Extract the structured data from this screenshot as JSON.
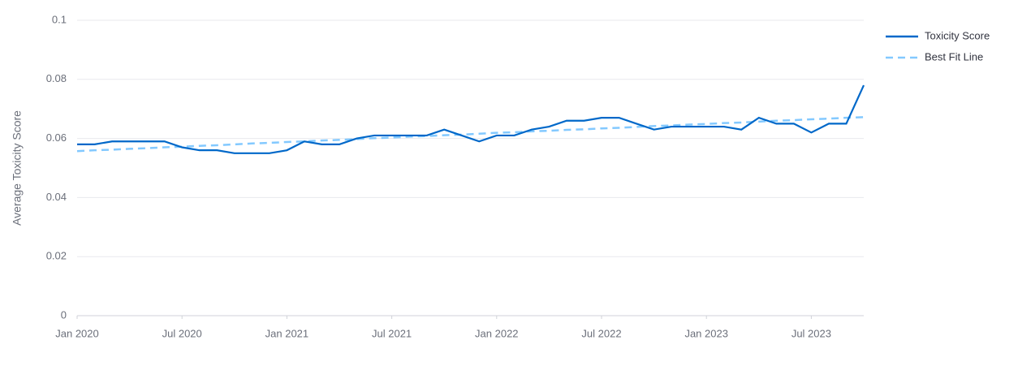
{
  "chart_data": {
    "type": "line",
    "y_label": "Average Toxicity Score",
    "x": [
      "2020-01",
      "2020-02",
      "2020-03",
      "2020-04",
      "2020-05",
      "2020-06",
      "2020-07",
      "2020-08",
      "2020-09",
      "2020-10",
      "2020-11",
      "2020-12",
      "2021-01",
      "2021-02",
      "2021-03",
      "2021-04",
      "2021-05",
      "2021-06",
      "2021-07",
      "2021-08",
      "2021-09",
      "2021-10",
      "2021-11",
      "2021-12",
      "2022-01",
      "2022-02",
      "2022-03",
      "2022-04",
      "2022-05",
      "2022-06",
      "2022-07",
      "2022-08",
      "2022-09",
      "2022-10",
      "2022-11",
      "2022-12",
      "2023-01",
      "2023-02",
      "2023-03",
      "2023-04",
      "2023-05",
      "2023-06",
      "2023-07",
      "2023-08",
      "2023-09",
      "2023-10"
    ],
    "series": [
      {
        "name": "Toxicity Score",
        "color": "#0068c9",
        "dash": false,
        "values": [
          0.058,
          0.058,
          0.059,
          0.059,
          0.059,
          0.059,
          0.057,
          0.056,
          0.056,
          0.055,
          0.055,
          0.055,
          0.056,
          0.059,
          0.058,
          0.058,
          0.06,
          0.061,
          0.061,
          0.061,
          0.061,
          0.063,
          0.061,
          0.059,
          0.061,
          0.061,
          0.063,
          0.064,
          0.066,
          0.066,
          0.067,
          0.067,
          0.065,
          0.063,
          0.064,
          0.064,
          0.064,
          0.064,
          0.063,
          0.067,
          0.065,
          0.065,
          0.062,
          0.065,
          0.065,
          0.078
        ]
      },
      {
        "name": "Best Fit Line",
        "color": "#83c9ff",
        "dash": true,
        "values": [
          0.0557,
          0.056,
          0.0562,
          0.0565,
          0.0567,
          0.057,
          0.0572,
          0.0575,
          0.0577,
          0.058,
          0.0583,
          0.0585,
          0.0588,
          0.059,
          0.0593,
          0.0595,
          0.0598,
          0.0601,
          0.0603,
          0.0606,
          0.0608,
          0.0611,
          0.0613,
          0.0616,
          0.0619,
          0.0621,
          0.0624,
          0.0626,
          0.0629,
          0.0631,
          0.0634,
          0.0636,
          0.0639,
          0.0642,
          0.0644,
          0.0647,
          0.0649,
          0.0652,
          0.0654,
          0.0657,
          0.066,
          0.0662,
          0.0665,
          0.0667,
          0.067,
          0.0672
        ]
      }
    ],
    "ylim": [
      0,
      0.1
    ],
    "yticks": [
      0,
      0.02,
      0.04,
      0.06,
      0.08,
      0.1
    ],
    "xticks": [
      {
        "value": "2020-01",
        "label": "Jan 2020"
      },
      {
        "value": "2020-07",
        "label": "Jul 2020"
      },
      {
        "value": "2021-01",
        "label": "Jan 2021"
      },
      {
        "value": "2021-07",
        "label": "Jul 2021"
      },
      {
        "value": "2022-01",
        "label": "Jan 2022"
      },
      {
        "value": "2022-07",
        "label": "Jul 2022"
      },
      {
        "value": "2023-01",
        "label": "Jan 2023"
      },
      {
        "value": "2023-07",
        "label": "Jul 2023"
      }
    ],
    "grid": true,
    "legend": "top-right"
  }
}
